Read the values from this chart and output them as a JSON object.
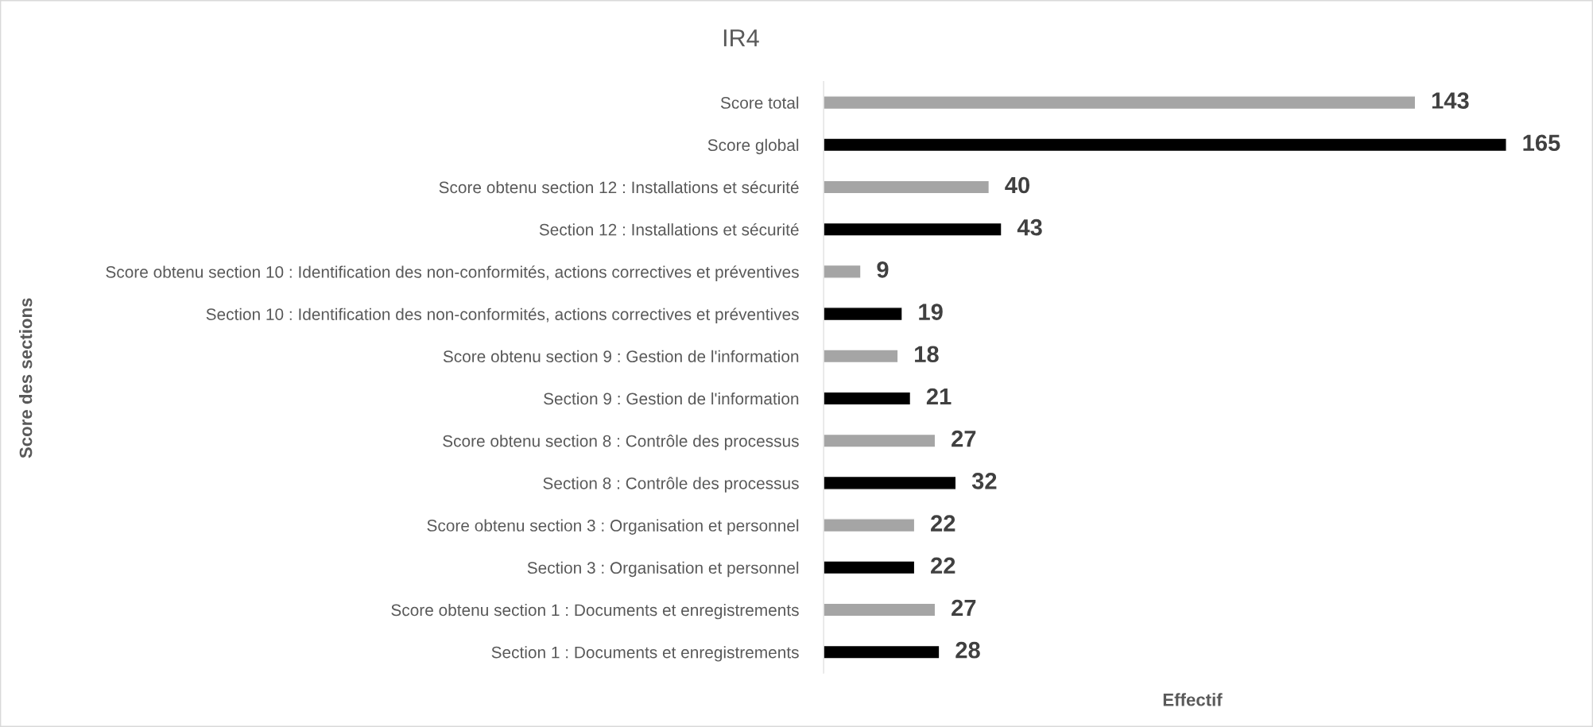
{
  "chart_data": {
    "type": "bar",
    "orientation": "horizontal",
    "title": "IR4",
    "xlabel": "Effectif",
    "ylabel": "Score des sections",
    "categories": [
      "Score total",
      "Score global",
      "Score obtenu section 12 : Installations et sécurité",
      "Section 12 : Installations et sécurité",
      "Score obtenu section 10 : Identification des non-conformités, actions correctives et préventives",
      "Section 10 : Identification des non-conformités, actions correctives et préventives",
      "Score obtenu section 9 : Gestion de l'information",
      "Section 9 : Gestion de l'information",
      "Score obtenu section 8 : Contrôle des processus",
      "Section 8 : Contrôle des processus",
      "Score obtenu section 3 : Organisation et personnel",
      "Section 3 : Organisation et personnel",
      "Score obtenu section 1 : Documents et enregistrements",
      "Section 1 : Documents et enregistrements"
    ],
    "values": [
      143,
      165,
      40,
      43,
      9,
      19,
      18,
      21,
      27,
      32,
      22,
      22,
      27,
      28
    ],
    "colors": [
      "#a5a5a5",
      "#000000",
      "#a5a5a5",
      "#000000",
      "#a5a5a5",
      "#000000",
      "#a5a5a5",
      "#000000",
      "#a5a5a5",
      "#000000",
      "#a5a5a5",
      "#000000",
      "#a5a5a5",
      "#000000"
    ],
    "data_labels": true,
    "tick_labels": "y",
    "grid": false,
    "legend": false
  }
}
